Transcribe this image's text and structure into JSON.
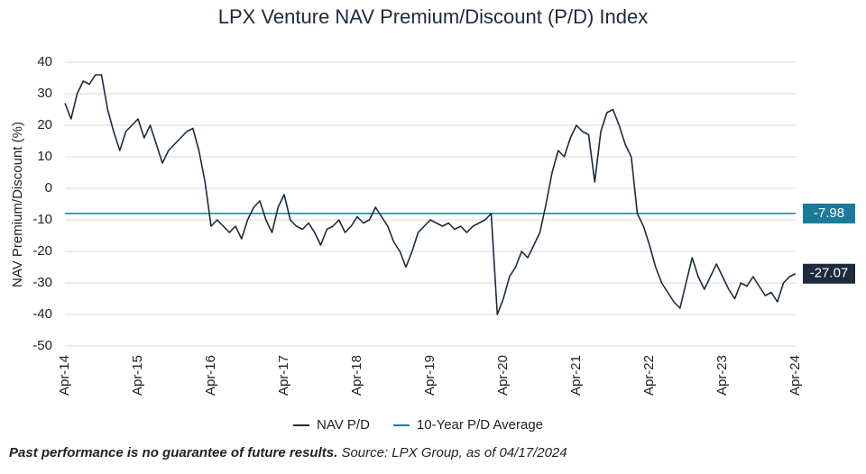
{
  "chart_data": {
    "type": "line",
    "title": "LPX Venture NAV Premium/Discount (P/D) Index",
    "ylabel": "NAV Premium/Discount (%)",
    "categories": [
      "Apr-14",
      null,
      null,
      null,
      null,
      null,
      null,
      null,
      null,
      null,
      null,
      null,
      "Apr-15",
      null,
      null,
      null,
      null,
      null,
      null,
      null,
      null,
      null,
      null,
      null,
      "Apr-16",
      null,
      null,
      null,
      null,
      null,
      null,
      null,
      null,
      null,
      null,
      null,
      "Apr-17",
      null,
      null,
      null,
      null,
      null,
      null,
      null,
      null,
      null,
      null,
      null,
      "Apr-18",
      null,
      null,
      null,
      null,
      null,
      null,
      null,
      null,
      null,
      null,
      null,
      "Apr-19",
      null,
      null,
      null,
      null,
      null,
      null,
      null,
      null,
      null,
      null,
      null,
      "Apr-20",
      null,
      null,
      null,
      null,
      null,
      null,
      null,
      null,
      null,
      null,
      null,
      "Apr-21",
      null,
      null,
      null,
      null,
      null,
      null,
      null,
      null,
      null,
      null,
      null,
      "Apr-22",
      null,
      null,
      null,
      null,
      null,
      null,
      null,
      null,
      null,
      null,
      null,
      "Apr-23",
      null,
      null,
      null,
      null,
      null,
      null,
      null,
      null,
      null,
      null,
      null,
      "Apr-24"
    ],
    "series": [
      {
        "name": "NAV P/D",
        "color": "#1c2b3c",
        "values": [
          27,
          22,
          30,
          34,
          33,
          36,
          36,
          25,
          18,
          12,
          18,
          20,
          22,
          16,
          20,
          14,
          8,
          12,
          14,
          16,
          18,
          19,
          12,
          2,
          -12,
          -10,
          -12,
          -14,
          -12,
          -16,
          -10,
          -6,
          -4,
          -10,
          -14,
          -6,
          -2,
          -10,
          -12,
          -13,
          -11,
          -14,
          -18,
          -13,
          -12,
          -10,
          -14,
          -12,
          -9,
          -11,
          -10,
          -6,
          -9,
          -12,
          -17,
          -20,
          -25,
          -20,
          -14,
          -12,
          -10,
          -11,
          -12,
          -11,
          -13,
          -12,
          -14,
          -12,
          -11,
          -10,
          -8,
          -40,
          -35,
          -28,
          -25,
          -20,
          -22,
          -18,
          -14,
          -5,
          5,
          12,
          10,
          16,
          20,
          18,
          17,
          2,
          18,
          24,
          25,
          20,
          14,
          10,
          -8,
          -12,
          -18,
          -25,
          -30,
          -33,
          -36,
          -38,
          -30,
          -22,
          -28,
          -32,
          -28,
          -24,
          -28,
          -32,
          -35,
          -30,
          -31,
          -28,
          -31,
          -34,
          -33,
          -36,
          -30,
          -28,
          -27.07
        ]
      }
    ],
    "reference_line": {
      "name": "10-Year P/D Average",
      "value": -7.98,
      "color": "#1a7a99"
    },
    "end_label": true,
    "ylim": [
      -50,
      40
    ],
    "yticks": [
      -50,
      -40,
      -30,
      -20,
      -10,
      0,
      10,
      20,
      30,
      40
    ],
    "grid": true,
    "footnote": {
      "bold": "Past performance is no guarantee of future results.",
      "source": "Source: LPX Group, as of 04/17/2024"
    }
  }
}
